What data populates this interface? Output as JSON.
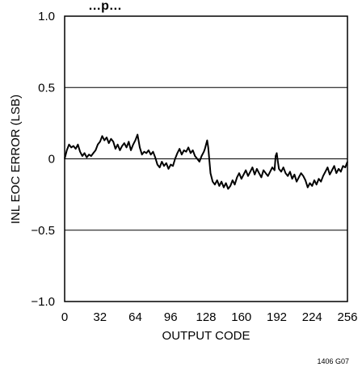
{
  "chart_data": {
    "type": "line",
    "title": "…p…",
    "xlabel": "OUTPUT CODE",
    "ylabel": "INL EOC ERROR (LSB)",
    "xlim": [
      0,
      256
    ],
    "ylim": [
      -1.0,
      1.0
    ],
    "xticks": [
      0,
      32,
      64,
      96,
      128,
      160,
      192,
      224,
      256
    ],
    "xtick_labels": [
      "0",
      "32",
      "64",
      "96",
      "128",
      "160",
      "192",
      "224",
      "256"
    ],
    "yticks": [
      1.0,
      0.5,
      0,
      -0.5,
      -1.0
    ],
    "ytick_labels": [
      "1.0",
      "0.5",
      "0",
      "−0.5",
      "−1.0"
    ],
    "grid": "horizontal",
    "figure_code": "1406 G07",
    "series": [
      {
        "color": "#000000",
        "x": [
          0,
          2,
          4,
          6,
          8,
          10,
          12,
          14,
          16,
          18,
          20,
          22,
          24,
          26,
          28,
          30,
          32,
          34,
          36,
          38,
          40,
          42,
          44,
          46,
          48,
          50,
          52,
          54,
          56,
          58,
          60,
          62,
          64,
          66,
          68,
          70,
          72,
          74,
          76,
          78,
          80,
          82,
          84,
          86,
          88,
          90,
          92,
          94,
          96,
          98,
          100,
          102,
          104,
          106,
          108,
          110,
          112,
          114,
          116,
          118,
          120,
          122,
          124,
          126,
          127,
          128,
          129,
          130,
          132,
          134,
          136,
          138,
          140,
          142,
          144,
          146,
          148,
          150,
          152,
          154,
          156,
          158,
          160,
          162,
          164,
          166,
          168,
          170,
          172,
          174,
          176,
          178,
          180,
          182,
          184,
          186,
          188,
          190,
          191,
          192,
          193,
          194,
          196,
          198,
          200,
          202,
          204,
          206,
          208,
          210,
          212,
          214,
          216,
          218,
          220,
          222,
          224,
          226,
          228,
          230,
          232,
          234,
          236,
          238,
          240,
          242,
          244,
          246,
          248,
          250,
          252,
          254,
          256
        ],
        "y": [
          0.0,
          0.06,
          0.1,
          0.08,
          0.09,
          0.07,
          0.1,
          0.05,
          0.02,
          0.04,
          0.01,
          0.03,
          0.02,
          0.04,
          0.06,
          0.1,
          0.12,
          0.16,
          0.13,
          0.15,
          0.11,
          0.14,
          0.12,
          0.07,
          0.1,
          0.06,
          0.09,
          0.11,
          0.08,
          0.12,
          0.06,
          0.1,
          0.13,
          0.17,
          0.08,
          0.03,
          0.05,
          0.04,
          0.06,
          0.03,
          0.05,
          0.01,
          -0.04,
          -0.06,
          -0.02,
          -0.05,
          -0.03,
          -0.07,
          -0.04,
          -0.05,
          0.0,
          0.04,
          0.07,
          0.03,
          0.06,
          0.05,
          0.08,
          0.04,
          0.06,
          0.02,
          0.0,
          -0.02,
          0.02,
          0.05,
          0.07,
          0.1,
          0.13,
          0.08,
          -0.1,
          -0.16,
          -0.18,
          -0.15,
          -0.19,
          -0.16,
          -0.2,
          -0.17,
          -0.21,
          -0.19,
          -0.15,
          -0.18,
          -0.13,
          -0.1,
          -0.14,
          -0.11,
          -0.08,
          -0.12,
          -0.09,
          -0.06,
          -0.11,
          -0.07,
          -0.1,
          -0.13,
          -0.08,
          -0.1,
          -0.12,
          -0.09,
          -0.06,
          -0.08,
          0.02,
          0.04,
          -0.02,
          -0.07,
          -0.09,
          -0.06,
          -0.1,
          -0.12,
          -0.09,
          -0.14,
          -0.11,
          -0.16,
          -0.13,
          -0.1,
          -0.12,
          -0.15,
          -0.2,
          -0.17,
          -0.19,
          -0.15,
          -0.18,
          -0.14,
          -0.16,
          -0.12,
          -0.09,
          -0.06,
          -0.11,
          -0.08,
          -0.05,
          -0.1,
          -0.07,
          -0.09,
          -0.05,
          -0.06,
          -0.02
        ]
      }
    ]
  }
}
